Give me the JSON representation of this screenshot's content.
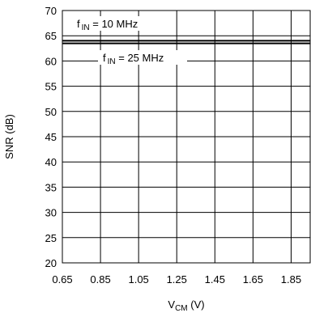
{
  "chart_data": {
    "type": "line",
    "title": "",
    "xlabel": {
      "main": "V",
      "sub": "CM",
      "unit": " (V)"
    },
    "ylabel": "SNR (dB)",
    "xlim": [
      0.65,
      1.95
    ],
    "ylim": [
      20,
      70
    ],
    "grid": true,
    "x_ticks": [
      0.65,
      0.85,
      1.05,
      1.25,
      1.45,
      1.65,
      1.85
    ],
    "x_tick_labels": [
      "0.65",
      "0.85",
      "1.05",
      "1.25",
      "1.45",
      "1.65",
      "1.85"
    ],
    "y_ticks": [
      20,
      25,
      30,
      35,
      40,
      45,
      50,
      55,
      60,
      65,
      70
    ],
    "y_tick_labels": [
      "20",
      "25",
      "30",
      "35",
      "40",
      "45",
      "50",
      "55",
      "60",
      "65",
      "70"
    ],
    "series": [
      {
        "name": "f IN = 10 MHz",
        "x": [
          0.65,
          0.85,
          1.05,
          1.25,
          1.45,
          1.65,
          1.85,
          1.95
        ],
        "y": [
          64.0,
          64.0,
          64.0,
          64.0,
          64.0,
          64.0,
          64.0,
          64.0
        ]
      },
      {
        "name": "f IN = 25 MHz",
        "x": [
          0.65,
          0.85,
          1.05,
          1.25,
          1.45,
          1.65,
          1.85,
          1.95
        ],
        "y": [
          63.5,
          63.5,
          63.5,
          63.5,
          63.5,
          63.5,
          63.5,
          63.5
        ]
      }
    ],
    "annotations": [
      {
        "main": "f",
        "sub": "IN",
        "rest": " = 10 MHz",
        "series": 0
      },
      {
        "main": "f",
        "sub": "IN",
        "rest": " = 25 MHz",
        "series": 1
      }
    ]
  }
}
